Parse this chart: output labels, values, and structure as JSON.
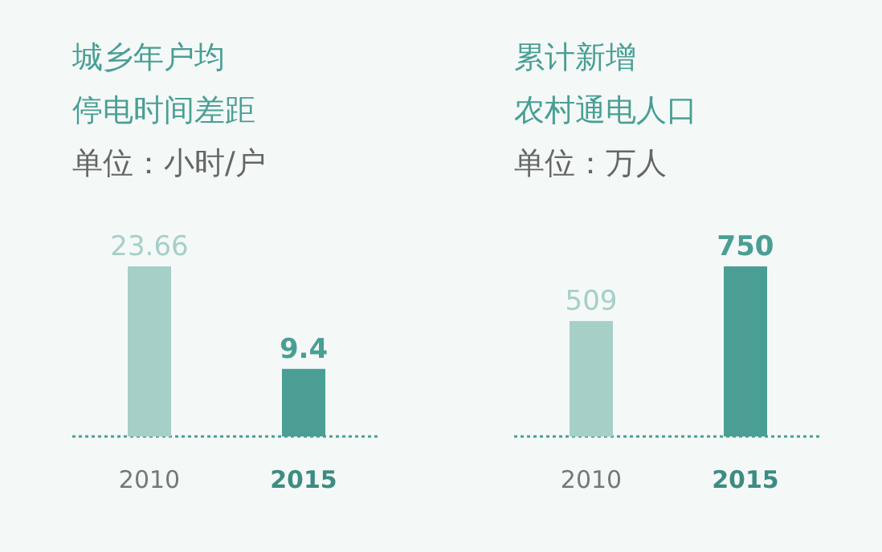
{
  "chart_data": [
    {
      "type": "bar",
      "title": "城乡年户均",
      "subtitle": "停电时间差距",
      "annotations": [
        "单位：小时/户"
      ],
      "categories": [
        "2010",
        "2015"
      ],
      "values": [
        23.66,
        9.4
      ],
      "colors": [
        "#a6cfc8",
        "#4a9e94"
      ],
      "data_labels": true
    },
    {
      "type": "bar",
      "title": "累计新增",
      "subtitle": "农村通电人口",
      "annotations": [
        "单位：万人"
      ],
      "categories": [
        "2010",
        "2015"
      ],
      "values": [
        509,
        750
      ],
      "colors": [
        "#a6cfc8",
        "#4a9e94"
      ],
      "data_labels": true
    }
  ]
}
